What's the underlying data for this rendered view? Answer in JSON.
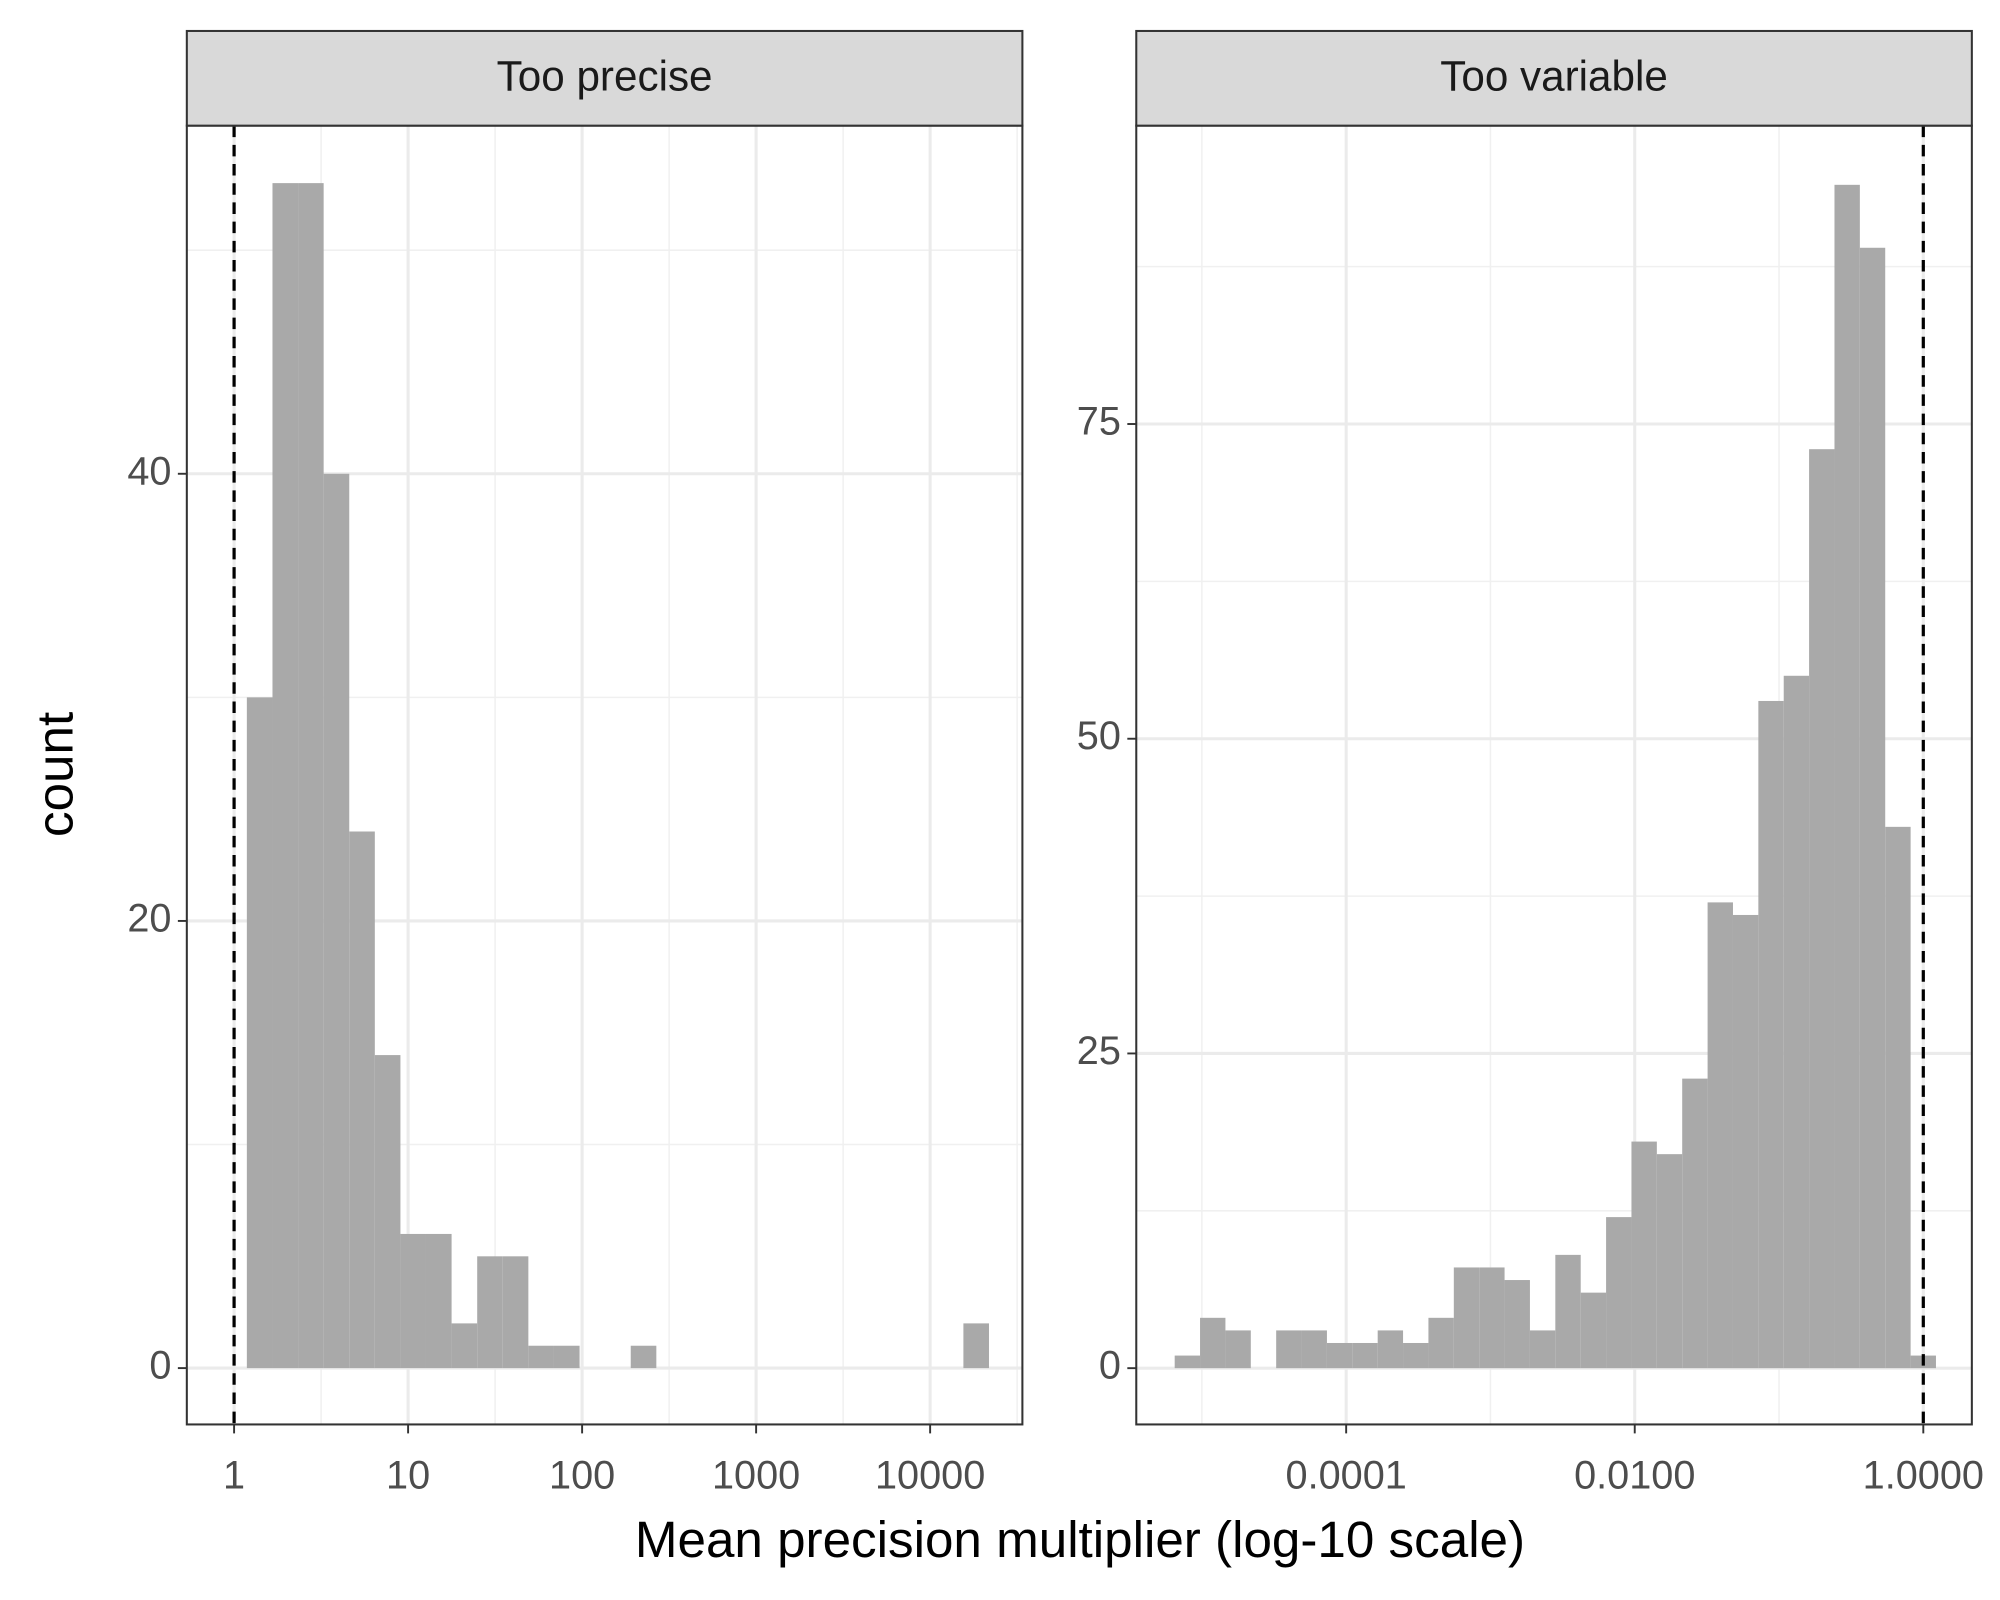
{
  "xlabel": "Mean precision multiplier (log-10 scale)",
  "ylabel": "count",
  "chart_data": [
    {
      "type": "histogram",
      "title": "Too precise",
      "color": "#a9a9a9",
      "log_x": true,
      "grid": true,
      "vline": 1,
      "bins": [
        1.184,
        1.662,
        2.332,
        3.271,
        4.59,
        6.438,
        9.035,
        12.67,
        17.78,
        24.95,
        35.0,
        49.1,
        68.9,
        96.7,
        135.6,
        190.3,
        267.0,
        374.6,
        525.6,
        737.5,
        1034,
        1451,
        2036,
        2857,
        4009,
        5623,
        7892,
        11070,
        15530,
        21790
      ],
      "counts": [
        30,
        53,
        53,
        40,
        24,
        14,
        6,
        6,
        2,
        5,
        5,
        1,
        1,
        0,
        0,
        1,
        0,
        0,
        0,
        0,
        0,
        0,
        0,
        0,
        0,
        0,
        0,
        0,
        2
      ],
      "xlim": [
        0.535,
        33900
      ],
      "xticks": [
        1,
        10,
        100,
        1000,
        10000
      ],
      "ylim": [
        -2.52,
        55.57
      ],
      "yticks": [
        0,
        20,
        40
      ]
    },
    {
      "type": "histogram",
      "title": "Too variable",
      "color": "#a9a9a9",
      "log_x": true,
      "grid": true,
      "vline": 1,
      "bins": [
        6.48e-06,
        9.71e-06,
        1.456e-05,
        2.183e-05,
        3.273e-05,
        4.907e-05,
        7.357e-05,
        0.0001103,
        0.0001654,
        0.0002479,
        0.0003717,
        0.0005573,
        0.0008355,
        0.0012527,
        0.001878,
        0.002816,
        0.004222,
        0.00633,
        0.00949,
        0.01423,
        0.02133,
        0.03199,
        0.04796,
        0.0719,
        0.1078,
        0.1616,
        0.2423,
        0.3633,
        0.5446,
        0.8166,
        1.224
      ],
      "counts": [
        1,
        4,
        3,
        0,
        3,
        3,
        2,
        2,
        3,
        2,
        4,
        8,
        8,
        7,
        3,
        9,
        6,
        12,
        18,
        17,
        23,
        37,
        36,
        53,
        55,
        73,
        94,
        89,
        43,
        1
      ],
      "xlim": [
        3.51e-06,
        2.17
      ],
      "xticks": [
        0.0001,
        {
          "value": 0.01,
          "label": "0.0100"
        },
        {
          "value": 1,
          "label": "1.0000"
        }
      ],
      "ylim": [
        -4.47,
        98.7
      ],
      "yticks": [
        0,
        25,
        50,
        75
      ]
    }
  ]
}
